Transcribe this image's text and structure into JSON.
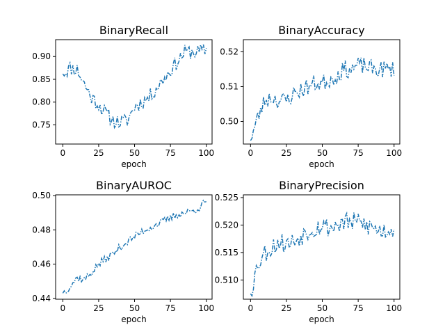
{
  "chart_data": [
    {
      "type": "line",
      "title": "BinaryRecall",
      "xlabel": "epoch",
      "ylabel": "",
      "xlim": [
        -5,
        104
      ],
      "ylim": [
        0.708,
        0.937
      ],
      "xticks": [
        0,
        25,
        50,
        75,
        100
      ],
      "xtick_labels": [
        "0",
        "25",
        "50",
        "75",
        "100"
      ],
      "yticks": [
        0.75,
        0.8,
        0.85,
        0.9
      ],
      "ytick_labels": [
        "0.75",
        "0.80",
        "0.85",
        "0.90"
      ],
      "anchors": [
        [
          0,
          0.862
        ],
        [
          5,
          0.875
        ],
        [
          10,
          0.872
        ],
        [
          15,
          0.84
        ],
        [
          20,
          0.81
        ],
        [
          25,
          0.795
        ],
        [
          30,
          0.775
        ],
        [
          35,
          0.76
        ],
        [
          40,
          0.755
        ],
        [
          45,
          0.76
        ],
        [
          50,
          0.79
        ],
        [
          55,
          0.8
        ],
        [
          60,
          0.81
        ],
        [
          65,
          0.83
        ],
        [
          70,
          0.85
        ],
        [
          75,
          0.87
        ],
        [
          80,
          0.89
        ],
        [
          85,
          0.91
        ],
        [
          90,
          0.91
        ],
        [
          95,
          0.91
        ],
        [
          100,
          0.915
        ]
      ],
      "noise": 0.016,
      "seed": 11
    },
    {
      "type": "line",
      "title": "BinaryAccuracy",
      "xlabel": "epoch",
      "ylabel": "",
      "xlim": [
        -5,
        104
      ],
      "ylim": [
        0.4935,
        0.5235
      ],
      "xticks": [
        0,
        25,
        50,
        75,
        100
      ],
      "xtick_labels": [
        "0",
        "25",
        "50",
        "75",
        "100"
      ],
      "yticks": [
        0.5,
        0.51,
        0.52
      ],
      "ytick_labels": [
        "0.50",
        "0.51",
        "0.52"
      ],
      "anchors": [
        [
          0,
          0.4945
        ],
        [
          5,
          0.501
        ],
        [
          10,
          0.506
        ],
        [
          15,
          0.507
        ],
        [
          20,
          0.506
        ],
        [
          25,
          0.506
        ],
        [
          30,
          0.508
        ],
        [
          35,
          0.509
        ],
        [
          40,
          0.51
        ],
        [
          45,
          0.511
        ],
        [
          50,
          0.511
        ],
        [
          55,
          0.512
        ],
        [
          60,
          0.513
        ],
        [
          65,
          0.515
        ],
        [
          70,
          0.515
        ],
        [
          75,
          0.516
        ],
        [
          80,
          0.516
        ],
        [
          85,
          0.515
        ],
        [
          90,
          0.515
        ],
        [
          95,
          0.515
        ],
        [
          100,
          0.515
        ]
      ],
      "noise": 0.0025,
      "seed": 23
    },
    {
      "type": "line",
      "title": "BinaryAUROC",
      "xlabel": "epoch",
      "ylabel": "",
      "xlim": [
        -5,
        104
      ],
      "ylim": [
        0.4395,
        0.5005
      ],
      "xticks": [
        0,
        25,
        50,
        75,
        100
      ],
      "xtick_labels": [
        "0",
        "25",
        "50",
        "75",
        "100"
      ],
      "yticks": [
        0.44,
        0.46,
        0.48,
        0.5
      ],
      "ytick_labels": [
        "0.44",
        "0.46",
        "0.48",
        "0.50"
      ],
      "anchors": [
        [
          0,
          0.443
        ],
        [
          5,
          0.447
        ],
        [
          10,
          0.452
        ],
        [
          15,
          0.451
        ],
        [
          20,
          0.455
        ],
        [
          25,
          0.46
        ],
        [
          30,
          0.463
        ],
        [
          35,
          0.466
        ],
        [
          40,
          0.47
        ],
        [
          45,
          0.473
        ],
        [
          50,
          0.476
        ],
        [
          55,
          0.479
        ],
        [
          60,
          0.481
        ],
        [
          65,
          0.483
        ],
        [
          70,
          0.485
        ],
        [
          75,
          0.487
        ],
        [
          80,
          0.489
        ],
        [
          85,
          0.49
        ],
        [
          90,
          0.491
        ],
        [
          95,
          0.493
        ],
        [
          100,
          0.497
        ]
      ],
      "noise": 0.0022,
      "seed": 37
    },
    {
      "type": "line",
      "title": "BinaryPrecision",
      "xlabel": "epoch",
      "ylabel": "",
      "xlim": [
        -5,
        104
      ],
      "ylim": [
        0.5065,
        0.5255
      ],
      "xticks": [
        0,
        25,
        50,
        75,
        100
      ],
      "xtick_labels": [
        "0",
        "25",
        "50",
        "75",
        "100"
      ],
      "yticks": [
        0.51,
        0.515,
        0.52,
        0.525
      ],
      "ytick_labels": [
        "0.510",
        "0.515",
        "0.520",
        "0.525"
      ],
      "anchors": [
        [
          0,
          0.5075
        ],
        [
          5,
          0.513
        ],
        [
          10,
          0.515
        ],
        [
          15,
          0.516
        ],
        [
          20,
          0.517
        ],
        [
          25,
          0.5165
        ],
        [
          30,
          0.517
        ],
        [
          35,
          0.518
        ],
        [
          40,
          0.519
        ],
        [
          45,
          0.5195
        ],
        [
          50,
          0.52
        ],
        [
          55,
          0.5195
        ],
        [
          60,
          0.52
        ],
        [
          65,
          0.5205
        ],
        [
          70,
          0.5205
        ],
        [
          75,
          0.5205
        ],
        [
          80,
          0.52
        ],
        [
          85,
          0.5195
        ],
        [
          90,
          0.519
        ],
        [
          95,
          0.519
        ],
        [
          100,
          0.5195
        ]
      ],
      "noise": 0.0018,
      "seed": 53
    }
  ]
}
